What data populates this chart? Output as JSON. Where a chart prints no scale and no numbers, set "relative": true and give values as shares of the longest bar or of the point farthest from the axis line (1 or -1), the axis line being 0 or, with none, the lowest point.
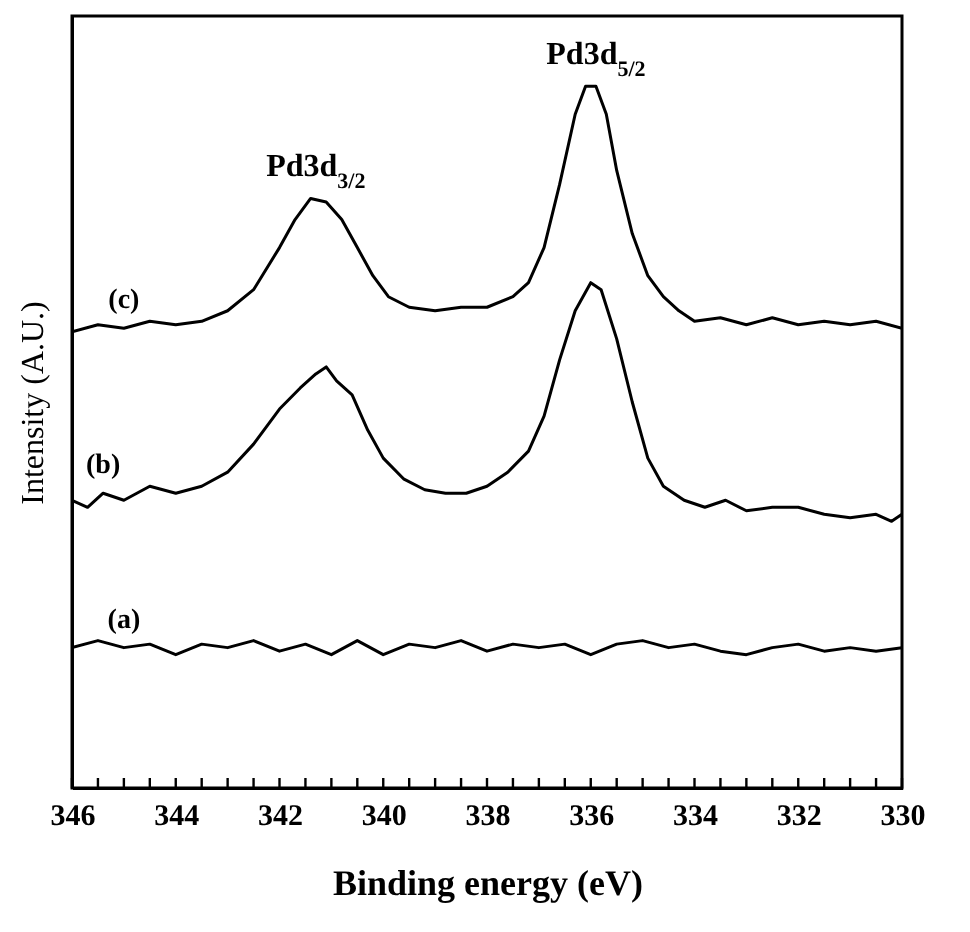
{
  "chart_data": {
    "type": "line",
    "relative": true,
    "xlabel": "Binding energy (eV)",
    "ylabel": "Intensity (A.U.)",
    "xlim": [
      346,
      330
    ],
    "xticks": [
      346,
      {
        "value": 345.5,
        "label": null
      },
      {
        "value": 345,
        "label": null
      },
      {
        "value": 344.5,
        "label": null
      },
      344,
      {
        "value": 343.5,
        "label": null
      },
      {
        "value": 343,
        "label": null
      },
      {
        "value": 342.5,
        "label": null
      },
      342,
      {
        "value": 341.5,
        "label": null
      },
      {
        "value": 341,
        "label": null
      },
      {
        "value": 340.5,
        "label": null
      },
      340,
      {
        "value": 339.5,
        "label": null
      },
      {
        "value": 339,
        "label": null
      },
      {
        "value": 338.5,
        "label": null
      },
      338,
      {
        "value": 337.5,
        "label": null
      },
      {
        "value": 337,
        "label": null
      },
      {
        "value": 336.5,
        "label": null
      },
      336,
      {
        "value": 335.5,
        "label": null
      },
      {
        "value": 335,
        "label": null
      },
      {
        "value": 334.5,
        "label": null
      },
      334,
      {
        "value": 333.5,
        "label": null
      },
      {
        "value": 333,
        "label": null
      },
      {
        "value": 332.5,
        "label": null
      },
      332,
      {
        "value": 331.5,
        "label": null
      },
      {
        "value": 331,
        "label": null
      },
      {
        "value": 330.5,
        "label": null
      },
      330
    ],
    "tick_labels": "x",
    "annotations": [
      {
        "text": "Pd3d$_{3/2}$",
        "x": 341.3,
        "y": 0.84
      },
      {
        "text": "Pd3d$_{5/2}$",
        "x": 335.9,
        "y": 1.0
      }
    ],
    "series": [
      {
        "name": "(c)",
        "color": "#000000",
        "x": [
          346,
          345.5,
          345,
          344.5,
          344,
          343.5,
          343,
          342.5,
          342,
          341.7,
          341.4,
          341.1,
          340.8,
          340.5,
          340.2,
          339.9,
          339.5,
          339,
          338.5,
          338,
          337.5,
          337.2,
          336.9,
          336.6,
          336.3,
          336.1,
          335.9,
          335.7,
          335.5,
          335.2,
          334.9,
          334.6,
          334.3,
          334,
          333.5,
          333,
          332.5,
          332,
          331.5,
          331,
          330.5,
          330
        ],
        "values": [
          0.65,
          0.66,
          0.655,
          0.665,
          0.66,
          0.665,
          0.68,
          0.71,
          0.77,
          0.81,
          0.84,
          0.835,
          0.81,
          0.77,
          0.73,
          0.7,
          0.685,
          0.68,
          0.685,
          0.685,
          0.7,
          0.72,
          0.77,
          0.86,
          0.96,
          1.0,
          1.0,
          0.96,
          0.88,
          0.79,
          0.73,
          0.7,
          0.68,
          0.665,
          0.67,
          0.66,
          0.67,
          0.66,
          0.665,
          0.66,
          0.665,
          0.655
        ]
      },
      {
        "name": "(b)",
        "color": "#000000",
        "x": [
          346,
          345.7,
          345.4,
          345,
          344.5,
          344,
          343.5,
          343,
          342.5,
          342,
          341.6,
          341.3,
          341.1,
          340.9,
          340.6,
          340.3,
          340,
          339.6,
          339.2,
          338.8,
          338.4,
          338,
          337.6,
          337.2,
          336.9,
          336.6,
          336.3,
          336,
          335.8,
          335.5,
          335.2,
          334.9,
          334.6,
          334.2,
          333.8,
          333.4,
          333,
          332.5,
          332,
          331.5,
          331,
          330.5,
          330.2,
          330
        ],
        "values": [
          0.41,
          0.4,
          0.42,
          0.41,
          0.43,
          0.42,
          0.43,
          0.45,
          0.49,
          0.54,
          0.57,
          0.59,
          0.6,
          0.58,
          0.56,
          0.51,
          0.47,
          0.44,
          0.425,
          0.42,
          0.42,
          0.43,
          0.45,
          0.48,
          0.53,
          0.61,
          0.68,
          0.72,
          0.71,
          0.64,
          0.55,
          0.47,
          0.43,
          0.41,
          0.4,
          0.41,
          0.395,
          0.4,
          0.4,
          0.39,
          0.385,
          0.39,
          0.38,
          0.39
        ]
      },
      {
        "name": "(a)",
        "color": "#000000",
        "x": [
          346,
          345.5,
          345,
          344.5,
          344,
          343.5,
          343,
          342.5,
          342,
          341.5,
          341,
          340.5,
          340,
          339.5,
          339,
          338.5,
          338,
          337.5,
          337,
          336.5,
          336,
          335.5,
          335,
          334.5,
          334,
          333.5,
          333,
          332.5,
          332,
          331.5,
          331,
          330.5,
          330
        ],
        "values": [
          0.2,
          0.21,
          0.2,
          0.205,
          0.19,
          0.205,
          0.2,
          0.21,
          0.195,
          0.205,
          0.19,
          0.21,
          0.19,
          0.205,
          0.2,
          0.21,
          0.195,
          0.205,
          0.2,
          0.205,
          0.19,
          0.205,
          0.21,
          0.2,
          0.205,
          0.195,
          0.19,
          0.2,
          0.205,
          0.195,
          0.2,
          0.195,
          0.2
        ]
      }
    ]
  }
}
